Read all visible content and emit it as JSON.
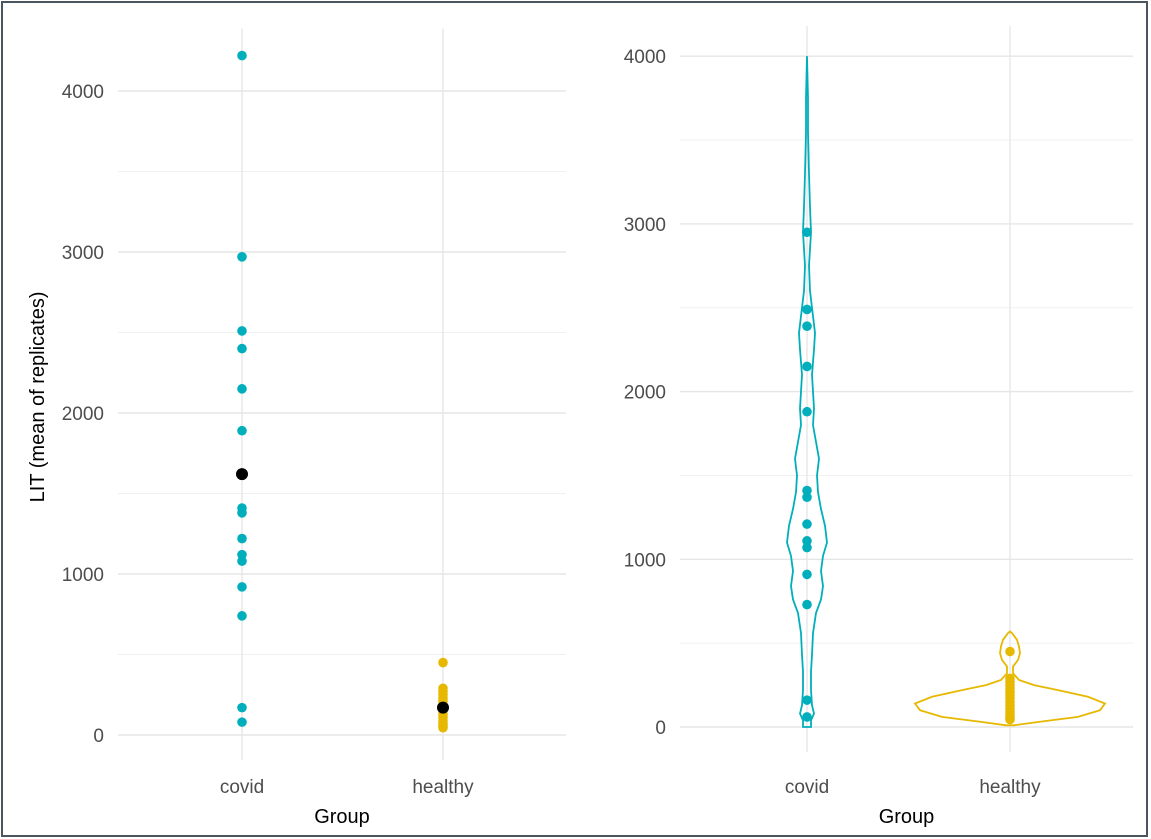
{
  "chart_data": [
    {
      "type": "scatter",
      "title": "",
      "xlabel": "Group",
      "ylabel": "LIT (mean of replicates)",
      "categories": [
        "covid",
        "healthy"
      ],
      "ylim": [
        0,
        4200
      ],
      "yticks": [
        0,
        1000,
        2000,
        3000,
        4000
      ],
      "grid": true,
      "legend": "none",
      "colors": {
        "covid": "#00afbb",
        "healthy": "#e7b800",
        "mean": "#000000"
      },
      "series": [
        {
          "category": "covid",
          "values": [
            4220,
            2970,
            2510,
            2400,
            2150,
            1890,
            1410,
            1380,
            1220,
            1120,
            1080,
            920,
            740,
            170,
            80
          ]
        },
        {
          "category": "healthy",
          "values": [
            450,
            290,
            270,
            250,
            230,
            210,
            190,
            170,
            150,
            130,
            110,
            90,
            70,
            55,
            45
          ]
        }
      ],
      "means": [
        {
          "category": "covid",
          "value": 1620
        },
        {
          "category": "healthy",
          "value": 170
        }
      ]
    },
    {
      "type": "violin",
      "title": "",
      "xlabel": "Group",
      "ylabel": "",
      "categories": [
        "covid",
        "healthy"
      ],
      "ylim": [
        0,
        4000
      ],
      "yticks": [
        0,
        1000,
        2000,
        3000,
        4000
      ],
      "grid": true,
      "legend": "none",
      "colors": {
        "covid": "#00afbb",
        "healthy": "#e7b800"
      },
      "series": [
        {
          "category": "covid",
          "values": [
            2950,
            2490,
            2390,
            2150,
            1880,
            1410,
            1370,
            1210,
            1110,
            1070,
            910,
            730,
            160,
            60
          ]
        },
        {
          "category": "healthy",
          "values": [
            450,
            290,
            270,
            250,
            230,
            210,
            190,
            170,
            150,
            130,
            110,
            90,
            70,
            55,
            45
          ]
        }
      ]
    }
  ]
}
